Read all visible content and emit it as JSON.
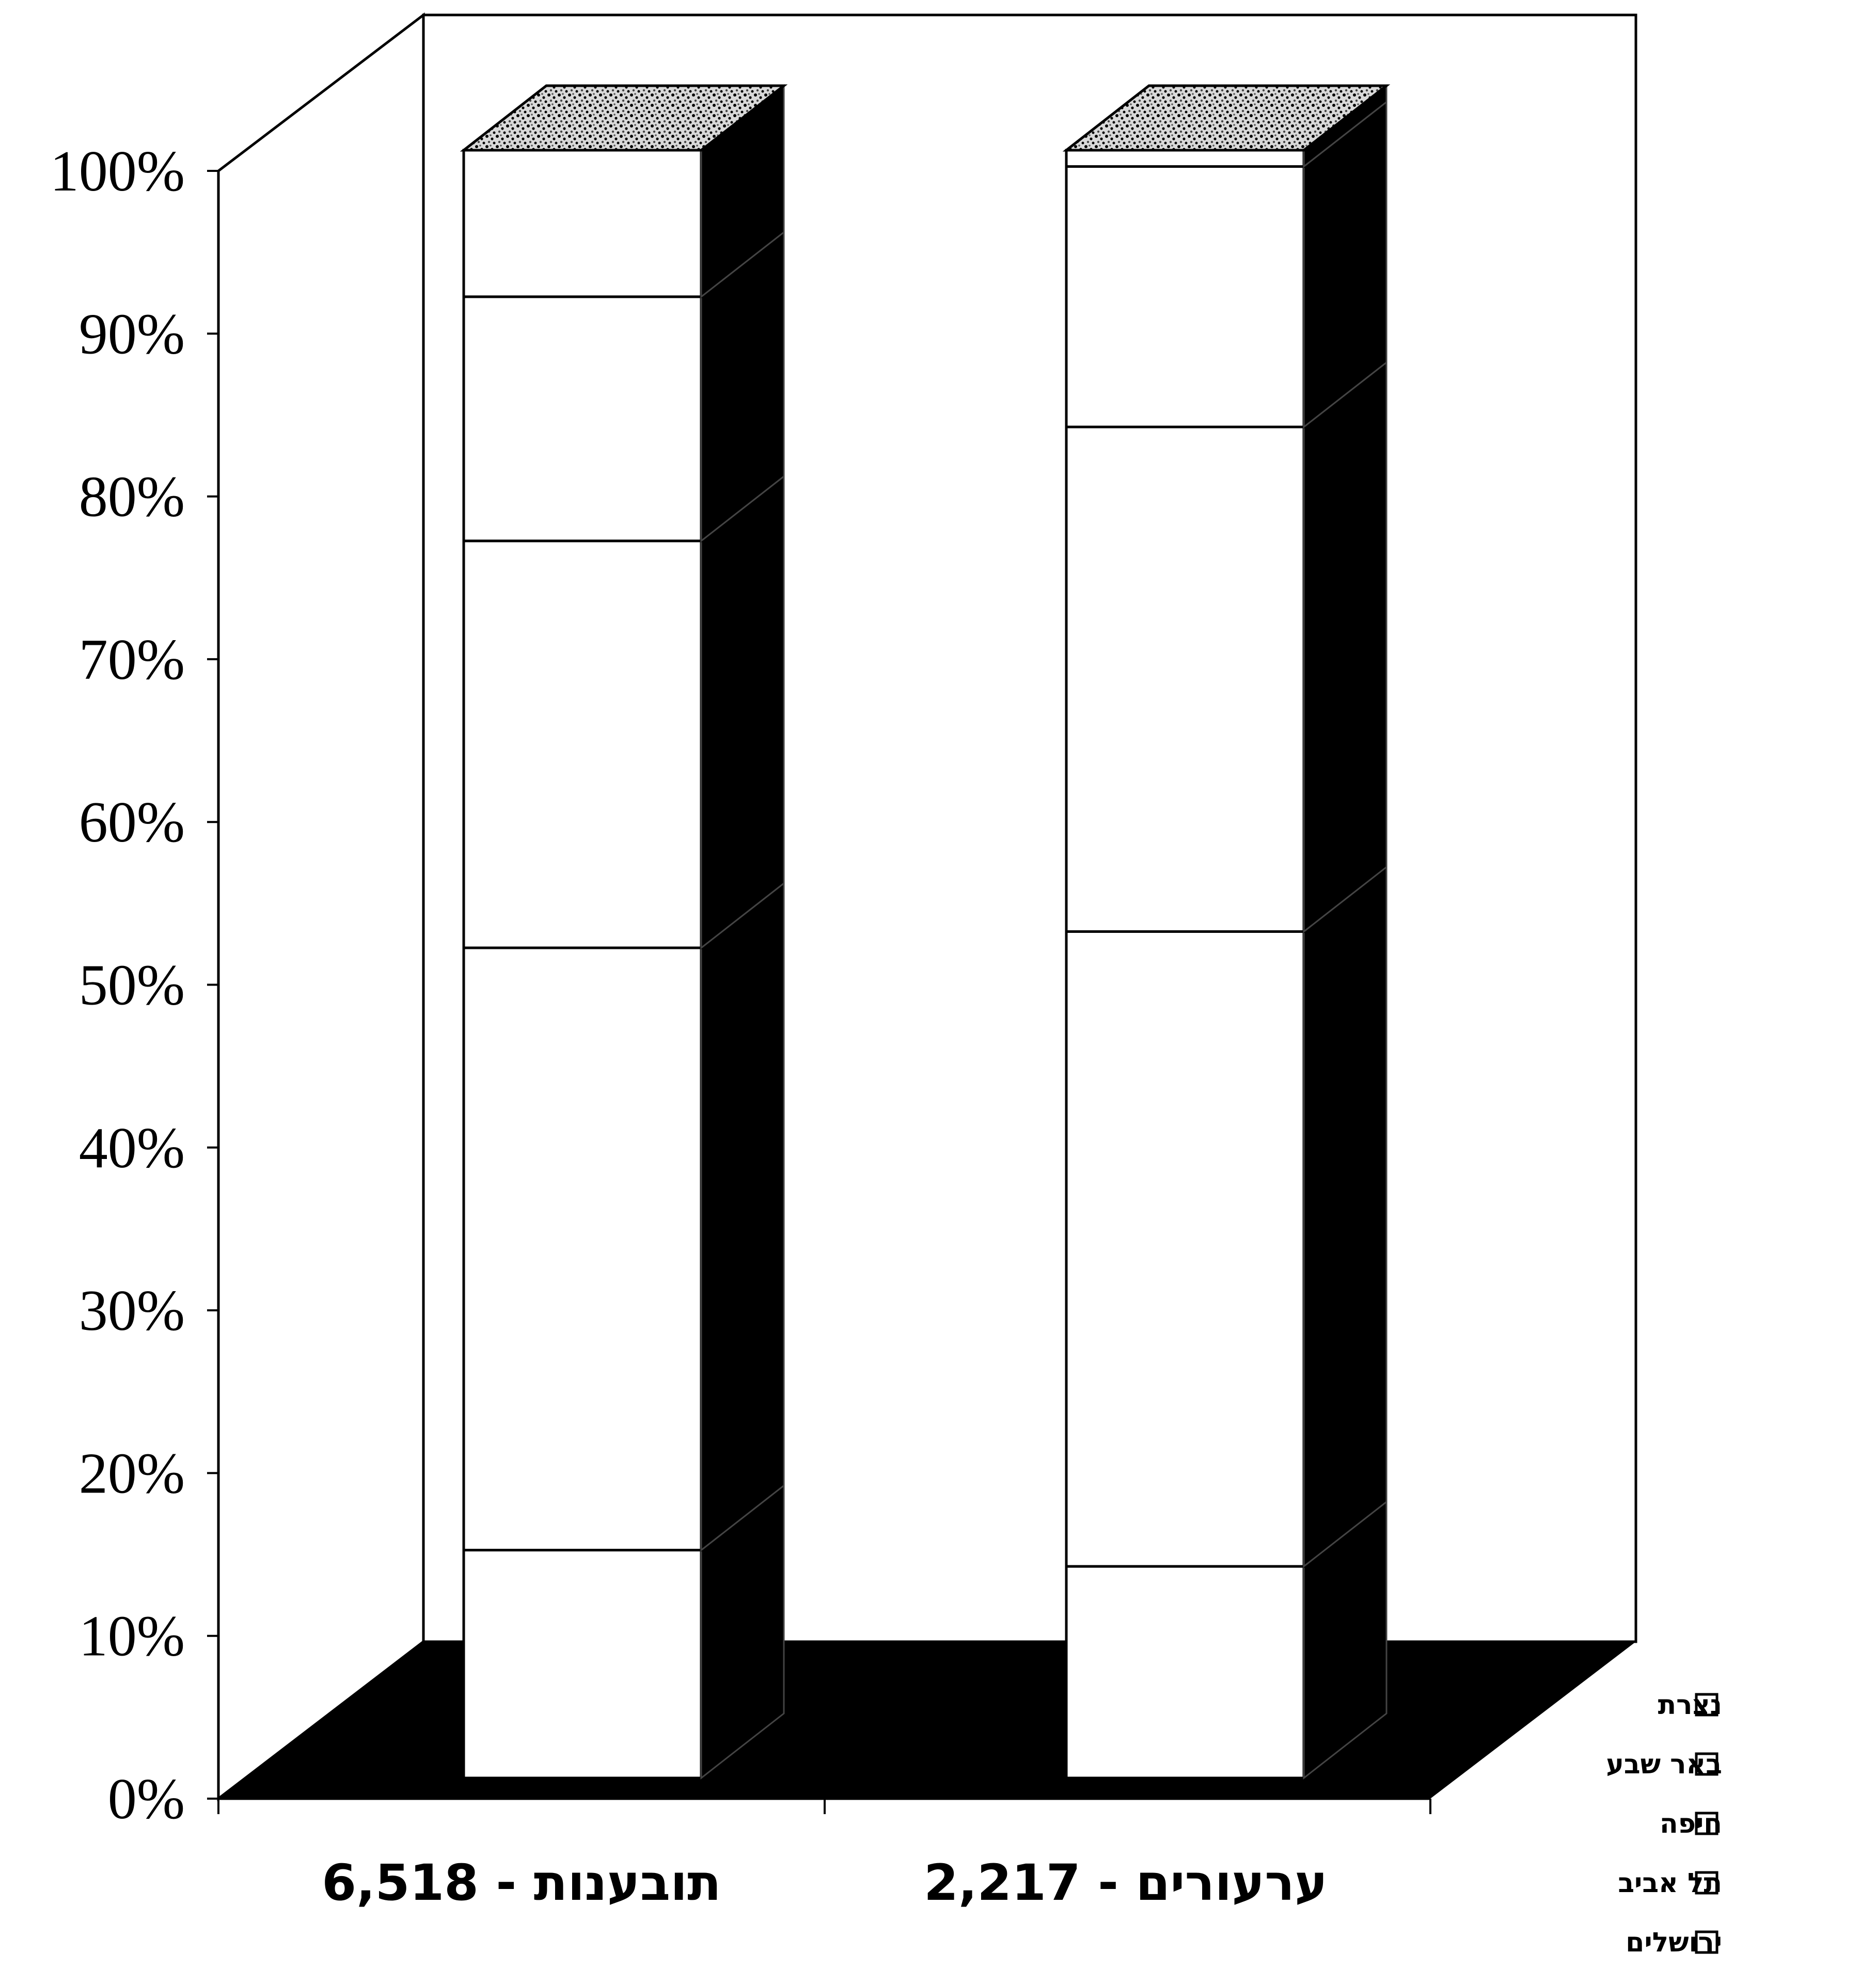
{
  "chart_data": {
    "type": "bar",
    "stacked": "percent",
    "style": "3d",
    "categories": [
      "תובענות - 6,518",
      "ערעורים - 2,217"
    ],
    "series": [
      {
        "name": "ירושלים",
        "values": [
          14,
          13
        ]
      },
      {
        "name": "תל אביב",
        "values": [
          37,
          39
        ]
      },
      {
        "name": "חיפה",
        "values": [
          25,
          31
        ]
      },
      {
        "name": "באר שבע",
        "values": [
          15,
          16
        ]
      },
      {
        "name": "נצרת",
        "values": [
          9,
          1
        ]
      }
    ],
    "top_face_pattern": "stipple",
    "y_ticks": [
      "0%",
      "10%",
      "20%",
      "30%",
      "40%",
      "50%",
      "60%",
      "70%",
      "80%",
      "90%",
      "100%"
    ],
    "ylim": [
      0,
      100
    ],
    "grid": false,
    "legend_position": "bottom-right",
    "colors": {
      "front": "#ffffff",
      "side": "#000000",
      "floor": "#000000",
      "outline": "#000000"
    }
  }
}
